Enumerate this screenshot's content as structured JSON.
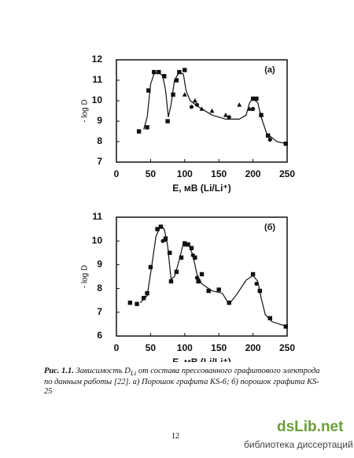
{
  "chart_data": [
    {
      "type": "scatter-line",
      "panel_label": "(а)",
      "x_label": "E, мВ (Li/Li⁺)",
      "y_label": "- log D",
      "xlim": [
        0,
        250
      ],
      "xticks": [
        0,
        50,
        100,
        150,
        200,
        250
      ],
      "ylim": [
        7,
        12
      ],
      "yticks": [
        7,
        8,
        9,
        10,
        11,
        12
      ],
      "color": "#111",
      "series": [
        {
          "marker": "square",
          "x": [
            33,
            45,
            47,
            55,
            62,
            70,
            75,
            83,
            88,
            92,
            100,
            200,
            205,
            212,
            222,
            248
          ],
          "values": [
            8.5,
            8.7,
            10.5,
            11.4,
            11.4,
            11.2,
            9,
            10.3,
            11,
            11.4,
            11.5,
            10.1,
            10.1,
            9.3,
            8.3,
            7.9
          ]
        },
        {
          "marker": "triangle",
          "x": [
            100,
            115,
            125,
            140,
            160,
            180,
            195
          ],
          "values": [
            10.3,
            10,
            9.6,
            9.5,
            9.3,
            9.8,
            9.6
          ]
        },
        {
          "marker": "circle",
          "x": [
            110,
            118,
            165,
            200,
            225
          ],
          "values": [
            9.7,
            9.8,
            9.2,
            9.6,
            8.1
          ]
        },
        {
          "marker": "line",
          "x": [
            40,
            45,
            50,
            55,
            62,
            68,
            72,
            76,
            80,
            85,
            92,
            98,
            102,
            108,
            120,
            140,
            160,
            180,
            190,
            195,
            200,
            207,
            212,
            220,
            235,
            250
          ],
          "values": [
            8.6,
            9.2,
            10.8,
            11.3,
            11.4,
            11.2,
            10.5,
            9.2,
            9.8,
            11,
            11.4,
            11.3,
            10.5,
            10,
            9.7,
            9.3,
            9.1,
            9.1,
            9.3,
            9.9,
            10.1,
            9.9,
            9.2,
            8.4,
            8,
            7.9
          ]
        }
      ]
    },
    {
      "type": "scatter-line",
      "panel_label": "(б)",
      "x_label": "E, мВ (Li/Li⁺)",
      "y_label": "- log D",
      "xlim": [
        0,
        250
      ],
      "xticks": [
        0,
        50,
        100,
        150,
        200,
        250
      ],
      "ylim": [
        6,
        11
      ],
      "yticks": [
        6,
        7,
        8,
        9,
        10,
        11
      ],
      "color": "#111",
      "series": [
        {
          "marker": "square",
          "x": [
            20,
            30,
            40,
            45,
            50,
            60,
            65,
            72,
            78,
            80,
            88,
            95,
            100,
            105,
            110,
            115,
            120,
            125,
            135,
            150,
            165,
            200,
            210,
            225,
            248
          ],
          "values": [
            7.4,
            7.35,
            7.6,
            7.8,
            8.9,
            10.5,
            10.6,
            10.1,
            9.5,
            8.3,
            8.7,
            9.3,
            9.9,
            9.85,
            9.7,
            9.3,
            8.3,
            8.6,
            7.9,
            7.95,
            7.4,
            8.6,
            7.9,
            6.75,
            6.4
          ]
        },
        {
          "marker": "circle",
          "x": [
            68,
            72,
            100,
            112,
            118,
            205,
            210
          ],
          "values": [
            10,
            10.05,
            9.85,
            9.4,
            8.45,
            8.2,
            7.9
          ]
        },
        {
          "marker": "line",
          "x": [
            35,
            45,
            52,
            58,
            65,
            70,
            75,
            80,
            85,
            92,
            98,
            105,
            112,
            118,
            125,
            140,
            155,
            165,
            175,
            190,
            200,
            207,
            212,
            218,
            228,
            250
          ],
          "values": [
            7.4,
            7.7,
            9,
            10.2,
            10.65,
            10.5,
            9.8,
            8.4,
            8.5,
            9.2,
            9.9,
            9.9,
            9.4,
            8.6,
            8.2,
            7.9,
            7.8,
            7.35,
            7.7,
            8.35,
            8.55,
            8.3,
            7.6,
            6.9,
            6.6,
            6.4
          ]
        }
      ]
    }
  ],
  "caption": {
    "label": "Рис. 1.1.",
    "text_1": " Зависимость D",
    "subscript": "Li",
    "text_2": " от состава прессованного графитового электрода по данным работы [22]. а) Порошок графита KS-6; б) порошок графита KS-25"
  },
  "page_number": "12",
  "watermark": {
    "site": "dsLib.net",
    "subtitle": "библиотека диссертаций"
  }
}
